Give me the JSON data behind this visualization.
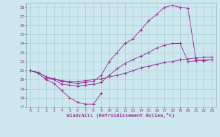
{
  "xlabel": "Windchill (Refroidissement éolien,°C)",
  "background_color": "#cce8ee",
  "grid_color": "#aaccd4",
  "line_color": "#993399",
  "xlim": [
    -0.5,
    23.5
  ],
  "ylim": [
    17,
    28.5
  ],
  "yticks": [
    17,
    18,
    19,
    20,
    21,
    22,
    23,
    24,
    25,
    26,
    27,
    28
  ],
  "xticks": [
    0,
    1,
    2,
    3,
    4,
    5,
    6,
    7,
    8,
    9,
    10,
    11,
    12,
    13,
    14,
    15,
    16,
    17,
    18,
    19,
    20,
    21,
    22,
    23
  ],
  "series": [
    {
      "x": [
        0,
        1,
        2,
        3,
        4,
        5,
        6,
        7,
        8,
        9,
        10,
        11,
        12,
        13,
        14,
        15,
        16,
        17,
        18,
        19,
        20,
        21,
        22,
        23
      ],
      "y": [
        21,
        20.8,
        20.3,
        20.1,
        19.8,
        19.7,
        19.6,
        19.7,
        19.8,
        20.5,
        22,
        23,
        24,
        24.5,
        25.5,
        26.5,
        27.2,
        28,
        28.2,
        28,
        27.9,
        22.2,
        22.1,
        22.2
      ]
    },
    {
      "x": [
        0,
        1,
        2,
        3,
        4,
        5,
        6,
        7,
        8,
        9
      ],
      "y": [
        21,
        20.7,
        20.0,
        19.6,
        18.8,
        18.0,
        17.5,
        17.3,
        17.3,
        18.5
      ]
    },
    {
      "x": [
        0,
        1,
        2,
        3,
        4,
        5,
        6,
        7,
        8,
        9,
        10,
        11,
        12,
        13,
        14,
        15,
        16,
        17,
        18,
        19,
        20,
        21,
        22,
        23
      ],
      "y": [
        21,
        20.8,
        20.3,
        20.1,
        19.9,
        19.8,
        19.8,
        19.9,
        20.0,
        20.1,
        20.3,
        20.5,
        20.7,
        21.0,
        21.3,
        21.5,
        21.7,
        21.9,
        22.0,
        22.2,
        22.3,
        22.4,
        22.5,
        22.5
      ]
    },
    {
      "x": [
        2,
        3,
        4,
        5,
        6,
        7,
        8,
        9,
        10,
        11,
        12,
        13,
        14,
        15,
        16,
        17,
        18,
        19,
        20,
        21,
        22,
        23
      ],
      "y": [
        20.2,
        20.0,
        19.5,
        19.4,
        19.3,
        19.4,
        19.5,
        19.7,
        20.5,
        21.2,
        21.8,
        22.2,
        22.6,
        23.0,
        23.5,
        23.8,
        24.0,
        24.0,
        22.0,
        22.1,
        22.2,
        22.2
      ]
    }
  ]
}
